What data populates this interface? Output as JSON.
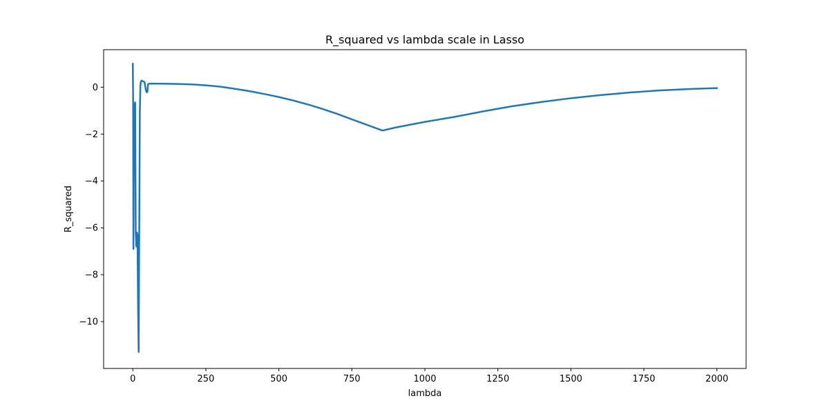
{
  "chart_data": {
    "type": "line",
    "title": "R_squared vs lambda scale in Lasso",
    "xlabel": "lambda",
    "ylabel": "R_squared",
    "xlim": [
      -100,
      2100
    ],
    "ylim": [
      -12.0,
      1.6
    ],
    "xticks": [
      0,
      250,
      500,
      750,
      1000,
      1250,
      1500,
      1750,
      2000
    ],
    "xtick_labels": [
      "0",
      "250",
      "500",
      "750",
      "1000",
      "1250",
      "1500",
      "1750",
      "2000"
    ],
    "yticks": [
      -10,
      -8,
      -6,
      -4,
      -2,
      0
    ],
    "ytick_labels": [
      "−10",
      "−8",
      "−6",
      "−4",
      "−2",
      "0"
    ],
    "grid": false,
    "series_color": "#1f77b4",
    "series": [
      {
        "x": [
          0,
          1,
          2,
          4,
          5,
          7,
          8,
          10,
          12,
          14,
          16,
          18,
          20,
          22,
          24,
          26,
          28,
          30,
          35,
          40,
          45,
          48,
          50,
          52,
          55,
          58,
          100,
          150,
          200,
          250,
          300,
          350,
          400,
          450,
          500,
          550,
          600,
          650,
          700,
          750,
          800,
          855,
          900,
          1000,
          1100,
          1200,
          1300,
          1400,
          1500,
          1600,
          1700,
          1800,
          1900,
          2000
        ],
        "y": [
          1.0,
          -0.5,
          -6.9,
          -1.2,
          -0.7,
          -3.0,
          -0.65,
          -6.2,
          -6.8,
          -6.2,
          -6.3,
          -9.5,
          -11.3,
          -6.0,
          -1.0,
          0.1,
          0.25,
          0.28,
          0.25,
          0.22,
          -0.15,
          -0.22,
          -0.2,
          0.12,
          0.15,
          0.15,
          0.15,
          0.14,
          0.12,
          0.08,
          0.02,
          -0.07,
          -0.17,
          -0.29,
          -0.42,
          -0.57,
          -0.74,
          -0.93,
          -1.14,
          -1.37,
          -1.6,
          -1.85,
          -1.72,
          -1.48,
          -1.27,
          -1.03,
          -0.81,
          -0.63,
          -0.47,
          -0.34,
          -0.23,
          -0.14,
          -0.08,
          -0.04
        ]
      }
    ]
  }
}
